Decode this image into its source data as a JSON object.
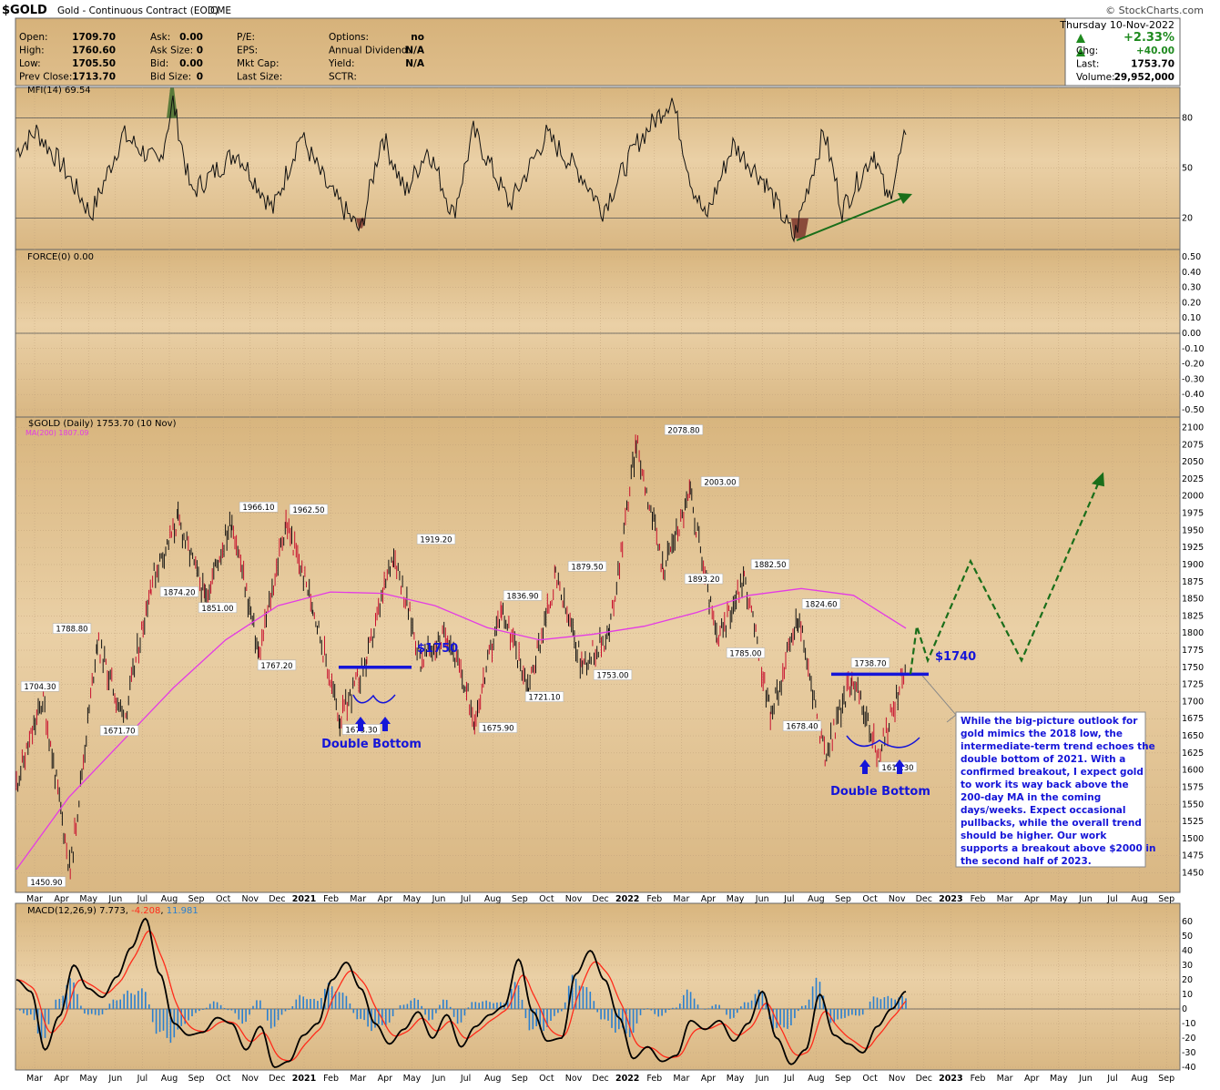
{
  "header": {
    "symbol": "$GOLD",
    "name": "Gold - Continuous Contract (EOD)",
    "exchange": "CME",
    "watermark": "© StockCharts.com",
    "date": "Thursday  10-Nov-2022",
    "pct_change": "+2.33%",
    "stats_left": [
      {
        "label": "Open:",
        "value": "1709.70"
      },
      {
        "label": "High:",
        "value": "1760.60"
      },
      {
        "label": "Low:",
        "value": "1705.50"
      },
      {
        "label": "Prev Close:",
        "value": "1713.70"
      }
    ],
    "stats_mid": [
      {
        "label": "Ask:",
        "value": "0.00"
      },
      {
        "label": "Ask Size:",
        "value": "0"
      },
      {
        "label": "Bid:",
        "value": "0.00"
      },
      {
        "label": "Bid Size:",
        "value": "0"
      }
    ],
    "stats_mid2": [
      {
        "label": "P/E:",
        "value": ""
      },
      {
        "label": "EPS:",
        "value": ""
      },
      {
        "label": "Mkt Cap:",
        "value": ""
      },
      {
        "label": "Last Size:",
        "value": ""
      }
    ],
    "stats_mid3": [
      {
        "label": "Options:",
        "value": "no"
      },
      {
        "label": "Annual Dividend:",
        "value": "N/A"
      },
      {
        "label": "Yield:",
        "value": "N/A"
      },
      {
        "label": "SCTR:",
        "value": ""
      }
    ],
    "stats_right": [
      {
        "label": "Chg:",
        "value": "+40.00"
      },
      {
        "label": "Last:",
        "value": "1753.70"
      },
      {
        "label": "Volume:",
        "value": "29,952,000"
      }
    ]
  },
  "chart_data": [
    {
      "type": "line",
      "title": "MFI(14) 69.54",
      "ylim": [
        0,
        100
      ],
      "yticks": [
        20,
        50,
        80
      ],
      "grid": true,
      "annotations": [
        "rising trendline (green arrow) under MFI lows"
      ]
    },
    {
      "type": "line",
      "title": "FORCE(0) 0.00",
      "yticks": [
        0.5,
        0.4,
        0.3,
        0.2,
        0.1,
        0.0,
        -0.1,
        -0.2,
        -0.3,
        -0.4,
        -0.5
      ],
      "ytick_labels": [
        "0.50",
        "0.40",
        "0.30",
        "0.20",
        "0.10",
        "0.00",
        "-0.10",
        "-0.20",
        "-0.30",
        "-0.40",
        "-0.50"
      ],
      "ylim": [
        -0.55,
        0.55
      ],
      "values": [
        0
      ]
    },
    {
      "type": "line",
      "title": "$GOLD (Daily) 1753.70 (10 Nov)",
      "legend": [
        "MA(200) 1807.09"
      ],
      "ylim": [
        1437.5,
        2112.5
      ],
      "yticks": [
        1450,
        1475,
        1500,
        1525,
        1550,
        1575,
        1600,
        1625,
        1650,
        1675,
        1700,
        1725,
        1750,
        1775,
        1800,
        1825,
        1850,
        1875,
        1900,
        1925,
        1950,
        1975,
        2000,
        2025,
        2050,
        2075,
        2100
      ],
      "x_dates": [
        "Mar 2020",
        "Apr 2020",
        "May 2020",
        "Jun 2020",
        "Jul 2020",
        "Aug 2020",
        "Sep 2020",
        "Oct 2020",
        "Nov 2020",
        "Dec 2020",
        "2021",
        "Feb 2021",
        "Mar 2021",
        "Apr 2021",
        "May 2021",
        "Jun 2021",
        "Jul 2021",
        "Aug 2021",
        "Sep 2021",
        "Oct 2021",
        "Nov 2021",
        "Dec 2021",
        "2022",
        "Feb 2022",
        "Mar 2022",
        "Apr 2022",
        "May 2022",
        "Jun 2022",
        "Jul 2022",
        "Aug 2022",
        "Sep 2022",
        "Oct 2022",
        "Nov 2022"
      ],
      "price_path": [
        1580,
        1704.3,
        1450.9,
        1788.8,
        1671.7,
        1874.2,
        1965,
        1851,
        1966.1,
        1767.2,
        1962.5,
        1840,
        1673.3,
        1760,
        1919.2,
        1760,
        1800,
        1675.9,
        1836.9,
        1721.1,
        1879.5,
        1753,
        1800,
        2078.8,
        1893.2,
        2003,
        1785,
        1882.5,
        1678.4,
        1824.6,
        1618.3,
        1738.7,
        1618.3,
        1753.7
      ],
      "ma200_path": [
        1455,
        1560,
        1640,
        1720,
        1790,
        1840,
        1860,
        1858,
        1840,
        1808,
        1790,
        1798,
        1810,
        1830,
        1855,
        1865,
        1855,
        1807
      ],
      "peak_labels": [
        {
          "date": "Mar 2020",
          "value": "1704.30",
          "pos": "above"
        },
        {
          "date": "Mar 2020",
          "value": "1450.90",
          "pos": "below"
        },
        {
          "date": "May 2020",
          "value": "1788.80",
          "pos": "above"
        },
        {
          "date": "Jun 2020",
          "value": "1671.70",
          "pos": "below"
        },
        {
          "date": "Aug 2020",
          "value": "1874.20",
          "pos": "below"
        },
        {
          "date": "Sep 2020",
          "value": "1851.00",
          "pos": "below"
        },
        {
          "date": "Nov 2020",
          "value": "1966.10",
          "pos": "above"
        },
        {
          "date": "Dec 2020",
          "value": "1767.20",
          "pos": "below"
        },
        {
          "date": "Jan 2021",
          "value": "1962.50",
          "pos": "above"
        },
        {
          "date": "Mar 2021",
          "value": "1673.30",
          "pos": "below"
        },
        {
          "date": "Jun 2021",
          "value": "1919.20",
          "pos": "above"
        },
        {
          "date": "Aug 2021",
          "value": "1675.90",
          "pos": "below"
        },
        {
          "date": "Sep 2021",
          "value": "1836.90",
          "pos": "above"
        },
        {
          "date": "Sep 2021",
          "value": "1721.10",
          "pos": "below"
        },
        {
          "date": "Nov 2021",
          "value": "1879.50",
          "pos": "above"
        },
        {
          "date": "Dec 2021",
          "value": "1753.00",
          "pos": "below"
        },
        {
          "date": "Mar 2022",
          "value": "2078.80",
          "pos": "above"
        },
        {
          "date": "Apr 2022",
          "value": "1893.20",
          "pos": "below"
        },
        {
          "date": "Apr 2022",
          "value": "2003.00",
          "pos": "above"
        },
        {
          "date": "May 2022",
          "value": "1785.00",
          "pos": "below"
        },
        {
          "date": "Jun 2022",
          "value": "1882.50",
          "pos": "above"
        },
        {
          "date": "Jul 2022",
          "value": "1678.40",
          "pos": "below"
        },
        {
          "date": "Aug 2022",
          "value": "1824.60",
          "pos": "above"
        },
        {
          "date": "Oct 2022",
          "value": "1738.70",
          "pos": "above"
        },
        {
          "date": "Oct 2022",
          "value": "1618.30",
          "pos": "below"
        }
      ],
      "annotations": {
        "level_2021": "$1750",
        "level_2022": "$1740",
        "pattern_2021": "Double Bottom",
        "pattern_2022": "Double Bottom",
        "commentary": "While the big-picture outlook for gold mimics the 2018 low, the intermediate-term trend echoes the double bottom of 2021. With a confirmed breakout, I expect gold to work its way back above the 200-day MA in the coming days/weeks. Expect occasional pullbacks, while the overall trend should be higher. Our work supports a breakout above $2000 in the second half of 2023.",
        "projection_path": [
          1740,
          1810,
          1760,
          1905,
          1760,
          2030
        ]
      }
    },
    {
      "type": "line",
      "title": "MACD(12,26,9) 7.773, -4.208, 11.981",
      "title_parts": [
        "MACD(12,26,9) 7.773, ",
        "-4.208",
        ", ",
        "11.981"
      ],
      "ylim": [
        -42,
        68
      ],
      "yticks": [
        -40,
        -30,
        -20,
        -10,
        0,
        10,
        20,
        30,
        40,
        50,
        60
      ],
      "series": [
        {
          "name": "MACD",
          "color": "#000000"
        },
        {
          "name": "Signal",
          "color": "#ff2a1a"
        },
        {
          "name": "Histogram",
          "color": "#2a7fcf"
        }
      ],
      "macd_path": [
        20,
        12,
        -28,
        -5,
        30,
        14,
        8,
        22,
        42,
        62,
        24,
        -10,
        -18,
        -16,
        -6,
        -10,
        -28,
        -12,
        -40,
        -36,
        -18,
        -10,
        20,
        32,
        14,
        -10,
        -24,
        -14,
        -2,
        -20,
        -4,
        -26,
        -12,
        -4,
        2,
        34,
        -2,
        -22,
        -20,
        24,
        40,
        20,
        -6,
        -34,
        -26,
        -36,
        -32,
        -8,
        -14,
        -8,
        -22,
        -10,
        12,
        -20,
        -38,
        -28,
        10,
        -18,
        -24,
        -30,
        -12,
        0,
        12
      ]
    }
  ],
  "x_axis_labels": [
    "Mar",
    "Apr",
    "May",
    "Jun",
    "Jul",
    "Aug",
    "Sep",
    "Oct",
    "Nov",
    "Dec",
    "2021",
    "Feb",
    "Mar",
    "Apr",
    "May",
    "Jun",
    "Jul",
    "Aug",
    "Sep",
    "Oct",
    "Nov",
    "Dec",
    "2022",
    "Feb",
    "Mar",
    "Apr",
    "May",
    "Jun",
    "Jul",
    "Aug",
    "Sep",
    "Oct",
    "Nov",
    "Dec",
    "2023",
    "Feb",
    "Mar",
    "Apr",
    "May",
    "Jun",
    "Jul",
    "Aug",
    "Sep"
  ],
  "colors": {
    "panel_bg": "#e3c89c",
    "panel_bg_light": "#f0dcb8",
    "price_up": "#111111",
    "price_down": "#c8102e",
    "ma200": "#e43be4",
    "annotation_blue": "#1515d8",
    "projection_green": "#1a6e1a",
    "mfi_over": "#5a7a3a",
    "mfi_under": "#8a4a3a"
  }
}
